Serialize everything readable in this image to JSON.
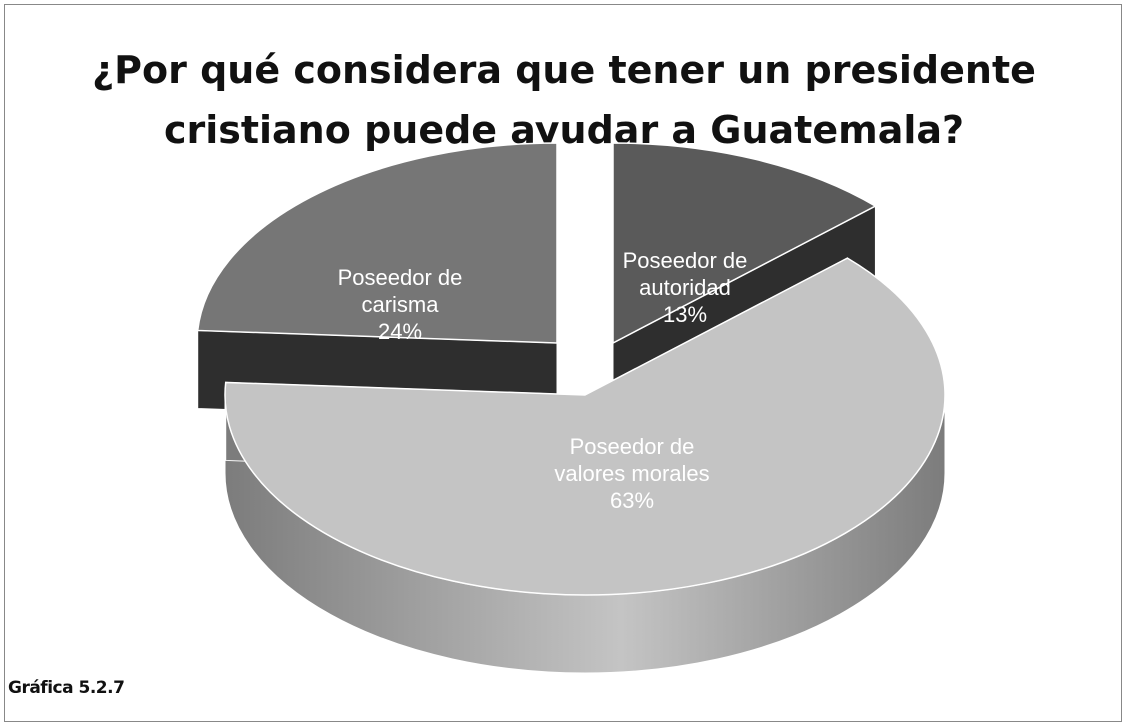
{
  "chart_data": {
    "type": "pie",
    "title_lines": [
      "¿Por qué considera que tener un presidente",
      "cristiano puede ayudar a Guatemala?"
    ],
    "slices": [
      {
        "label_lines": [
          "Poseedor de",
          "autoridad",
          "13%"
        ],
        "value": 13,
        "color_top": "#5a5a5a",
        "color_side": "#2e2e2e"
      },
      {
        "label_lines": [
          "Poseedor de",
          "valores morales",
          "63%"
        ],
        "value": 63,
        "color_top": "#c4c4c4",
        "color_side": "#7c7c7c"
      },
      {
        "label_lines": [
          "Poseedor de",
          "carisma",
          "24%"
        ],
        "value": 24,
        "color_top": "#767676",
        "color_side": "#2e2e2e"
      }
    ],
    "style": "3d-exploded",
    "legend": "none"
  },
  "caption": "Gráfica 5.2.7"
}
